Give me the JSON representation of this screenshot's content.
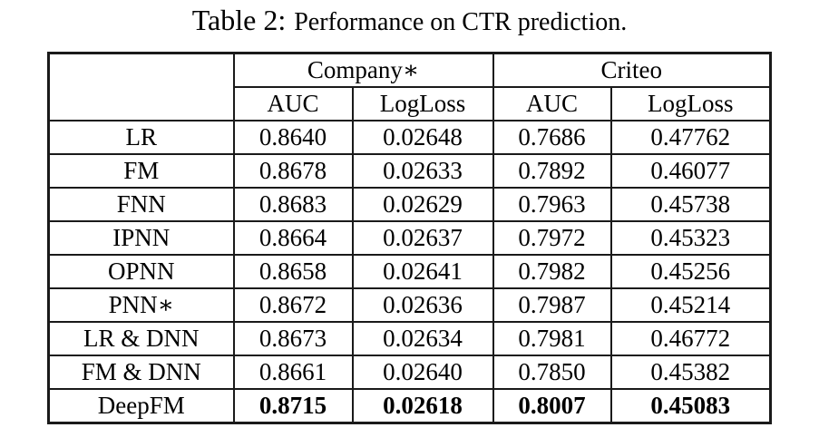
{
  "page": {
    "background": "#ffffff",
    "text_color": "#000000",
    "border_color": "#1a1a1a"
  },
  "caption": {
    "label": "Table 2:",
    "text": "Performance on CTR prediction."
  },
  "table": {
    "corner_label": "",
    "group_headers": [
      {
        "label": "Company∗",
        "span": 2
      },
      {
        "label": "Criteo",
        "span": 2
      }
    ],
    "sub_headers": [
      "AUC",
      "LogLoss",
      "AUC",
      "LogLoss"
    ],
    "rows": [
      {
        "model": "LR",
        "values": [
          "0.8640",
          "0.02648",
          "0.7686",
          "0.47762"
        ],
        "bold": false
      },
      {
        "model": "FM",
        "values": [
          "0.8678",
          "0.02633",
          "0.7892",
          "0.46077"
        ],
        "bold": false
      },
      {
        "model": "FNN",
        "values": [
          "0.8683",
          "0.02629",
          "0.7963",
          "0.45738"
        ],
        "bold": false
      },
      {
        "model": "IPNN",
        "values": [
          "0.8664",
          "0.02637",
          "0.7972",
          "0.45323"
        ],
        "bold": false
      },
      {
        "model": "OPNN",
        "values": [
          "0.8658",
          "0.02641",
          "0.7982",
          "0.45256"
        ],
        "bold": false
      },
      {
        "model": "PNN∗",
        "values": [
          "0.8672",
          "0.02636",
          "0.7987",
          "0.45214"
        ],
        "bold": false
      },
      {
        "model": "LR & DNN",
        "values": [
          "0.8673",
          "0.02634",
          "0.7981",
          "0.46772"
        ],
        "bold": false
      },
      {
        "model": "FM & DNN",
        "values": [
          "0.8661",
          "0.02640",
          "0.7850",
          "0.45382"
        ],
        "bold": false
      },
      {
        "model": "DeepFM",
        "values": [
          "0.8715",
          "0.02618",
          "0.8007",
          "0.45083"
        ],
        "bold": true
      }
    ]
  }
}
